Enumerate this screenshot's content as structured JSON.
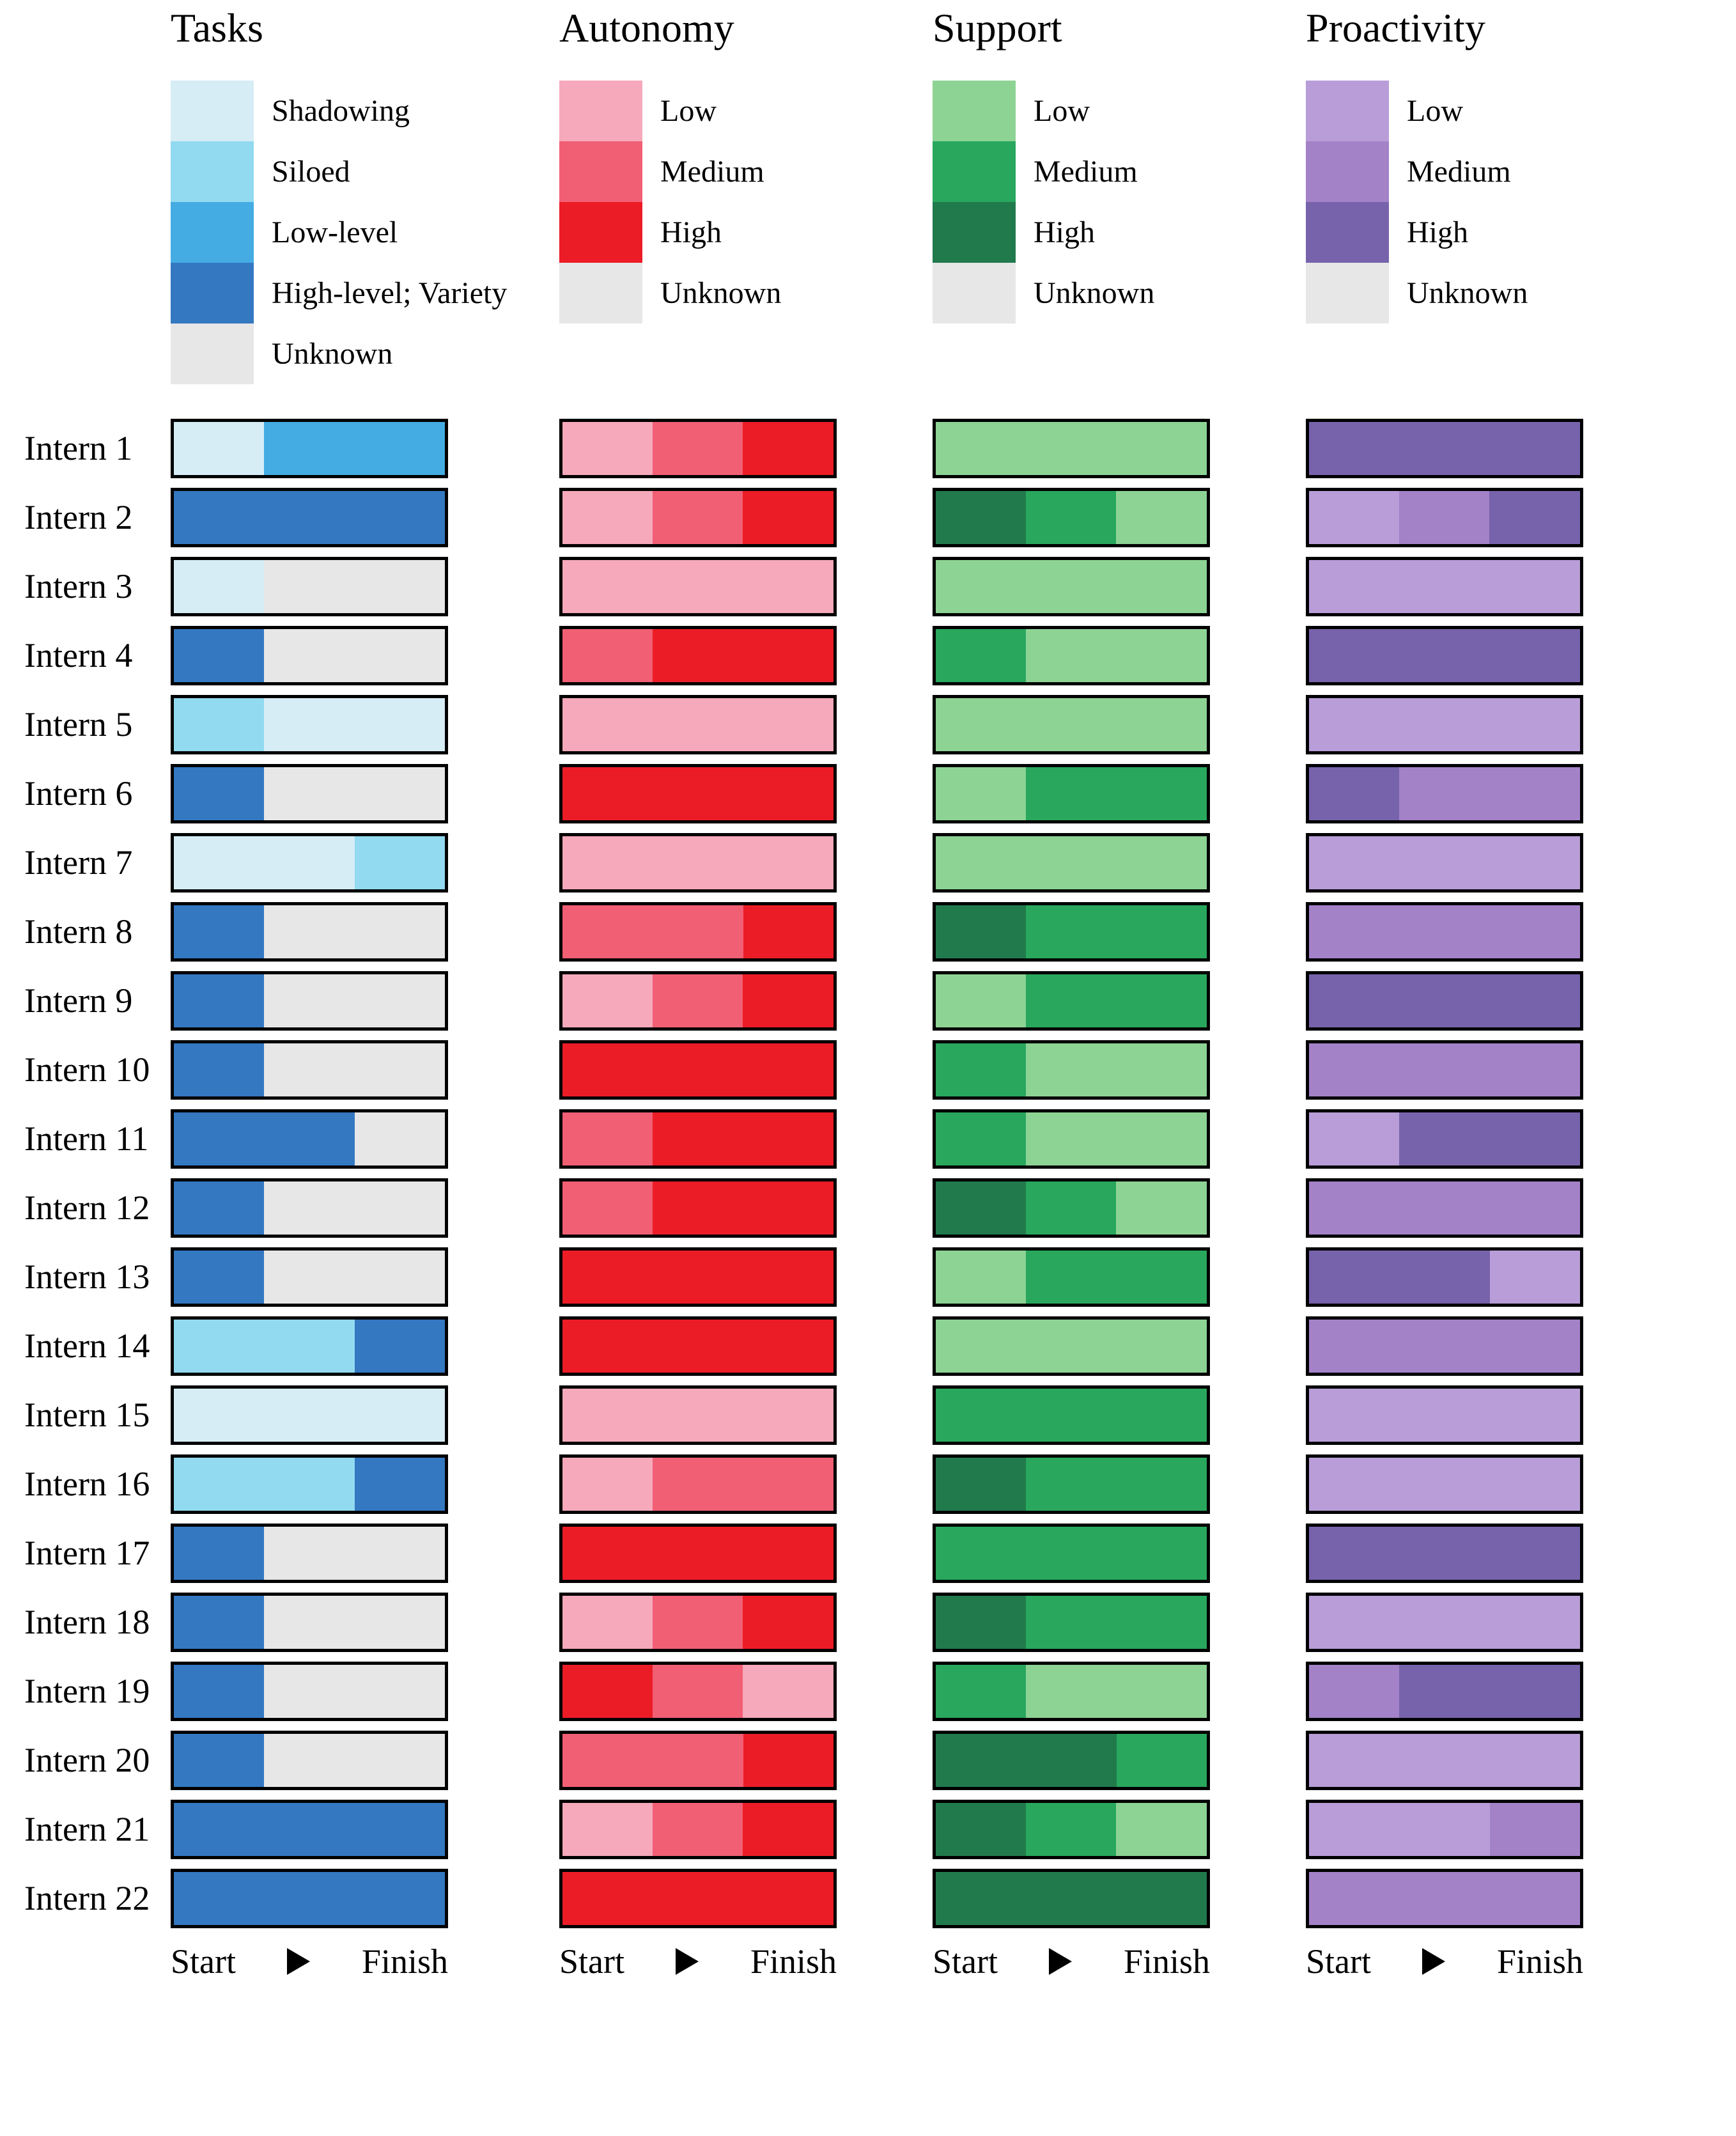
{
  "chart_data": {
    "type": "bar",
    "variant": "horizontal-stacked-categorical-timeline",
    "title": "",
    "categories": [
      "Intern 1",
      "Intern 2",
      "Intern 3",
      "Intern 4",
      "Intern 5",
      "Intern 6",
      "Intern 7",
      "Intern 8",
      "Intern 9",
      "Intern 10",
      "Intern 11",
      "Intern 12",
      "Intern 13",
      "Intern 14",
      "Intern 15",
      "Intern 16",
      "Intern 17",
      "Intern 18",
      "Intern 19",
      "Intern 20",
      "Intern 21",
      "Intern 22"
    ],
    "x_axis": {
      "start_label": "Start",
      "finish_label": "Finish"
    },
    "layout": {
      "legend_position": "top",
      "grid": false,
      "bar_outline_color": "#000000"
    },
    "panels": [
      {
        "title": "Tasks",
        "legend": [
          {
            "label": "Shadowing",
            "color": "#d6edf6"
          },
          {
            "label": "Siloed",
            "color": "#92daf0"
          },
          {
            "label": "Low-level",
            "color": "#44ace2"
          },
          {
            "label": "High-level; Variety",
            "color": "#3478c2"
          },
          {
            "label": "Unknown",
            "color": "#e7e7e7"
          }
        ],
        "bars": [
          [
            {
              "level": "Shadowing",
              "fraction": 0.333
            },
            {
              "level": "Low-level",
              "fraction": 0.667
            }
          ],
          [
            {
              "level": "High-level; Variety",
              "fraction": 1
            }
          ],
          [
            {
              "level": "Shadowing",
              "fraction": 0.333
            },
            {
              "level": "Unknown",
              "fraction": 0.667
            }
          ],
          [
            {
              "level": "High-level; Variety",
              "fraction": 0.333
            },
            {
              "level": "Unknown",
              "fraction": 0.667
            }
          ],
          [
            {
              "level": "Siloed",
              "fraction": 0.333
            },
            {
              "level": "Shadowing",
              "fraction": 0.667
            }
          ],
          [
            {
              "level": "High-level; Variety",
              "fraction": 0.333
            },
            {
              "level": "Unknown",
              "fraction": 0.667
            }
          ],
          [
            {
              "level": "Shadowing",
              "fraction": 0.667
            },
            {
              "level": "Siloed",
              "fraction": 0.333
            }
          ],
          [
            {
              "level": "High-level; Variety",
              "fraction": 0.333
            },
            {
              "level": "Unknown",
              "fraction": 0.667
            }
          ],
          [
            {
              "level": "High-level; Variety",
              "fraction": 0.333
            },
            {
              "level": "Unknown",
              "fraction": 0.667
            }
          ],
          [
            {
              "level": "High-level; Variety",
              "fraction": 0.333
            },
            {
              "level": "Unknown",
              "fraction": 0.667
            }
          ],
          [
            {
              "level": "High-level; Variety",
              "fraction": 0.667
            },
            {
              "level": "Unknown",
              "fraction": 0.333
            }
          ],
          [
            {
              "level": "High-level; Variety",
              "fraction": 0.333
            },
            {
              "level": "Unknown",
              "fraction": 0.667
            }
          ],
          [
            {
              "level": "High-level; Variety",
              "fraction": 0.333
            },
            {
              "level": "Unknown",
              "fraction": 0.667
            }
          ],
          [
            {
              "level": "Siloed",
              "fraction": 0.667
            },
            {
              "level": "High-level; Variety",
              "fraction": 0.333
            }
          ],
          [
            {
              "level": "Shadowing",
              "fraction": 1
            }
          ],
          [
            {
              "level": "Siloed",
              "fraction": 0.667
            },
            {
              "level": "High-level; Variety",
              "fraction": 0.333
            }
          ],
          [
            {
              "level": "High-level; Variety",
              "fraction": 0.333
            },
            {
              "level": "Unknown",
              "fraction": 0.667
            }
          ],
          [
            {
              "level": "High-level; Variety",
              "fraction": 0.333
            },
            {
              "level": "Unknown",
              "fraction": 0.667
            }
          ],
          [
            {
              "level": "High-level; Variety",
              "fraction": 0.333
            },
            {
              "level": "Unknown",
              "fraction": 0.667
            }
          ],
          [
            {
              "level": "High-level; Variety",
              "fraction": 0.333
            },
            {
              "level": "Unknown",
              "fraction": 0.667
            }
          ],
          [
            {
              "level": "High-level; Variety",
              "fraction": 1
            }
          ],
          [
            {
              "level": "High-level; Variety",
              "fraction": 1
            }
          ]
        ]
      },
      {
        "title": "Autonomy",
        "legend": [
          {
            "label": "Low",
            "color": "#f5a9ba"
          },
          {
            "label": "Medium",
            "color": "#f15f75"
          },
          {
            "label": "High",
            "color": "#ec1c26"
          },
          {
            "label": "Unknown",
            "color": "#e7e7e7"
          }
        ],
        "bars": [
          [
            {
              "level": "Low",
              "fraction": 0.333
            },
            {
              "level": "Medium",
              "fraction": 0.333
            },
            {
              "level": "High",
              "fraction": 0.334
            }
          ],
          [
            {
              "level": "Low",
              "fraction": 0.333
            },
            {
              "level": "Medium",
              "fraction": 0.333
            },
            {
              "level": "High",
              "fraction": 0.334
            }
          ],
          [
            {
              "level": "Low",
              "fraction": 1
            }
          ],
          [
            {
              "level": "Medium",
              "fraction": 0.333
            },
            {
              "level": "High",
              "fraction": 0.667
            }
          ],
          [
            {
              "level": "Low",
              "fraction": 1
            }
          ],
          [
            {
              "level": "High",
              "fraction": 1
            }
          ],
          [
            {
              "level": "Low",
              "fraction": 1
            }
          ],
          [
            {
              "level": "Medium",
              "fraction": 0.667
            },
            {
              "level": "High",
              "fraction": 0.333
            }
          ],
          [
            {
              "level": "Low",
              "fraction": 0.333
            },
            {
              "level": "Medium",
              "fraction": 0.333
            },
            {
              "level": "High",
              "fraction": 0.334
            }
          ],
          [
            {
              "level": "High",
              "fraction": 1
            }
          ],
          [
            {
              "level": "Medium",
              "fraction": 0.333
            },
            {
              "level": "High",
              "fraction": 0.667
            }
          ],
          [
            {
              "level": "Medium",
              "fraction": 0.333
            },
            {
              "level": "High",
              "fraction": 0.667
            }
          ],
          [
            {
              "level": "High",
              "fraction": 1
            }
          ],
          [
            {
              "level": "High",
              "fraction": 1
            }
          ],
          [
            {
              "level": "Low",
              "fraction": 1
            }
          ],
          [
            {
              "level": "Low",
              "fraction": 0.333
            },
            {
              "level": "Medium",
              "fraction": 0.667
            }
          ],
          [
            {
              "level": "High",
              "fraction": 1
            }
          ],
          [
            {
              "level": "Low",
              "fraction": 0.333
            },
            {
              "level": "Medium",
              "fraction": 0.333
            },
            {
              "level": "High",
              "fraction": 0.334
            }
          ],
          [
            {
              "level": "High",
              "fraction": 0.333
            },
            {
              "level": "Medium",
              "fraction": 0.333
            },
            {
              "level": "Low",
              "fraction": 0.334
            }
          ],
          [
            {
              "level": "Medium",
              "fraction": 0.667
            },
            {
              "level": "High",
              "fraction": 0.333
            }
          ],
          [
            {
              "level": "Low",
              "fraction": 0.333
            },
            {
              "level": "Medium",
              "fraction": 0.333
            },
            {
              "level": "High",
              "fraction": 0.334
            }
          ],
          [
            {
              "level": "High",
              "fraction": 1
            }
          ]
        ]
      },
      {
        "title": "Support",
        "legend": [
          {
            "label": "Low",
            "color": "#8dd394"
          },
          {
            "label": "Medium",
            "color": "#28a75d"
          },
          {
            "label": "High",
            "color": "#217a4c"
          },
          {
            "label": "Unknown",
            "color": "#e7e7e7"
          }
        ],
        "bars": [
          [
            {
              "level": "Low",
              "fraction": 1
            }
          ],
          [
            {
              "level": "High",
              "fraction": 0.333
            },
            {
              "level": "Medium",
              "fraction": 0.333
            },
            {
              "level": "Low",
              "fraction": 0.334
            }
          ],
          [
            {
              "level": "Low",
              "fraction": 1
            }
          ],
          [
            {
              "level": "Medium",
              "fraction": 0.333
            },
            {
              "level": "Low",
              "fraction": 0.667
            }
          ],
          [
            {
              "level": "Low",
              "fraction": 1
            }
          ],
          [
            {
              "level": "Low",
              "fraction": 0.333
            },
            {
              "level": "Medium",
              "fraction": 0.667
            }
          ],
          [
            {
              "level": "Low",
              "fraction": 1
            }
          ],
          [
            {
              "level": "High",
              "fraction": 0.333
            },
            {
              "level": "Medium",
              "fraction": 0.667
            }
          ],
          [
            {
              "level": "Low",
              "fraction": 0.333
            },
            {
              "level": "Medium",
              "fraction": 0.667
            }
          ],
          [
            {
              "level": "Medium",
              "fraction": 0.333
            },
            {
              "level": "Low",
              "fraction": 0.667
            }
          ],
          [
            {
              "level": "Medium",
              "fraction": 0.333
            },
            {
              "level": "Low",
              "fraction": 0.667
            }
          ],
          [
            {
              "level": "High",
              "fraction": 0.333
            },
            {
              "level": "Medium",
              "fraction": 0.333
            },
            {
              "level": "Low",
              "fraction": 0.334
            }
          ],
          [
            {
              "level": "Low",
              "fraction": 0.333
            },
            {
              "level": "Medium",
              "fraction": 0.667
            }
          ],
          [
            {
              "level": "Low",
              "fraction": 1
            }
          ],
          [
            {
              "level": "Medium",
              "fraction": 1
            }
          ],
          [
            {
              "level": "High",
              "fraction": 0.333
            },
            {
              "level": "Medium",
              "fraction": 0.667
            }
          ],
          [
            {
              "level": "Medium",
              "fraction": 1
            }
          ],
          [
            {
              "level": "High",
              "fraction": 0.333
            },
            {
              "level": "Medium",
              "fraction": 0.667
            }
          ],
          [
            {
              "level": "Medium",
              "fraction": 0.333
            },
            {
              "level": "Low",
              "fraction": 0.667
            }
          ],
          [
            {
              "level": "High",
              "fraction": 0.667
            },
            {
              "level": "Medium",
              "fraction": 0.333
            }
          ],
          [
            {
              "level": "High",
              "fraction": 0.333
            },
            {
              "level": "Medium",
              "fraction": 0.333
            },
            {
              "level": "Low",
              "fraction": 0.334
            }
          ],
          [
            {
              "level": "High",
              "fraction": 1
            }
          ]
        ]
      },
      {
        "title": "Proactivity",
        "legend": [
          {
            "label": "Low",
            "color": "#b89dd8"
          },
          {
            "label": "Medium",
            "color": "#a382c8"
          },
          {
            "label": "High",
            "color": "#7763ab"
          },
          {
            "label": "Unknown",
            "color": "#e7e7e7"
          }
        ],
        "bars": [
          [
            {
              "level": "High",
              "fraction": 1
            }
          ],
          [
            {
              "level": "Low",
              "fraction": 0.333
            },
            {
              "level": "Medium",
              "fraction": 0.333
            },
            {
              "level": "High",
              "fraction": 0.334
            }
          ],
          [
            {
              "level": "Low",
              "fraction": 1
            }
          ],
          [
            {
              "level": "High",
              "fraction": 1
            }
          ],
          [
            {
              "level": "Low",
              "fraction": 1
            }
          ],
          [
            {
              "level": "High",
              "fraction": 0.333
            },
            {
              "level": "Medium",
              "fraction": 0.667
            }
          ],
          [
            {
              "level": "Low",
              "fraction": 1
            }
          ],
          [
            {
              "level": "Medium",
              "fraction": 1
            }
          ],
          [
            {
              "level": "High",
              "fraction": 1
            }
          ],
          [
            {
              "level": "Medium",
              "fraction": 1
            }
          ],
          [
            {
              "level": "Low",
              "fraction": 0.333
            },
            {
              "level": "High",
              "fraction": 0.667
            }
          ],
          [
            {
              "level": "Medium",
              "fraction": 1
            }
          ],
          [
            {
              "level": "High",
              "fraction": 0.667
            },
            {
              "level": "Low",
              "fraction": 0.333
            }
          ],
          [
            {
              "level": "Medium",
              "fraction": 1
            }
          ],
          [
            {
              "level": "Low",
              "fraction": 1
            }
          ],
          [
            {
              "level": "Low",
              "fraction": 1
            }
          ],
          [
            {
              "level": "High",
              "fraction": 1
            }
          ],
          [
            {
              "level": "Low",
              "fraction": 1
            }
          ],
          [
            {
              "level": "Medium",
              "fraction": 0.333
            },
            {
              "level": "High",
              "fraction": 0.667
            }
          ],
          [
            {
              "level": "Low",
              "fraction": 1
            }
          ],
          [
            {
              "level": "Low",
              "fraction": 0.667
            },
            {
              "level": "Medium",
              "fraction": 0.333
            }
          ],
          [
            {
              "level": "Medium",
              "fraction": 1
            }
          ]
        ]
      }
    ]
  }
}
